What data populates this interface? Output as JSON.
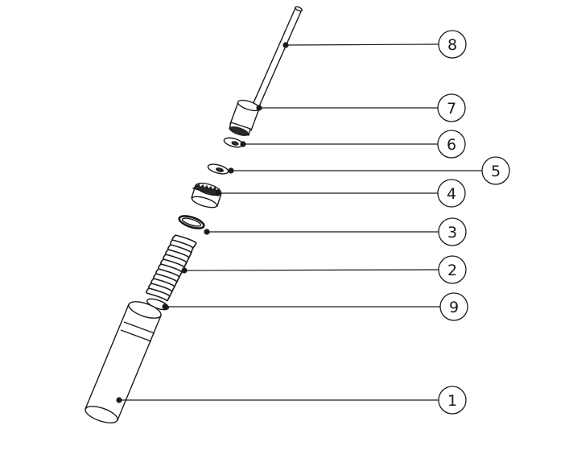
{
  "callouts": [
    {
      "id": "8",
      "label": "8"
    },
    {
      "id": "7",
      "label": "7"
    },
    {
      "id": "6",
      "label": "6"
    },
    {
      "id": "5",
      "label": "5"
    },
    {
      "id": "4",
      "label": "4"
    },
    {
      "id": "3",
      "label": "3"
    },
    {
      "id": "2",
      "label": "2"
    },
    {
      "id": "9",
      "label": "9"
    },
    {
      "id": "1",
      "label": "1"
    }
  ]
}
